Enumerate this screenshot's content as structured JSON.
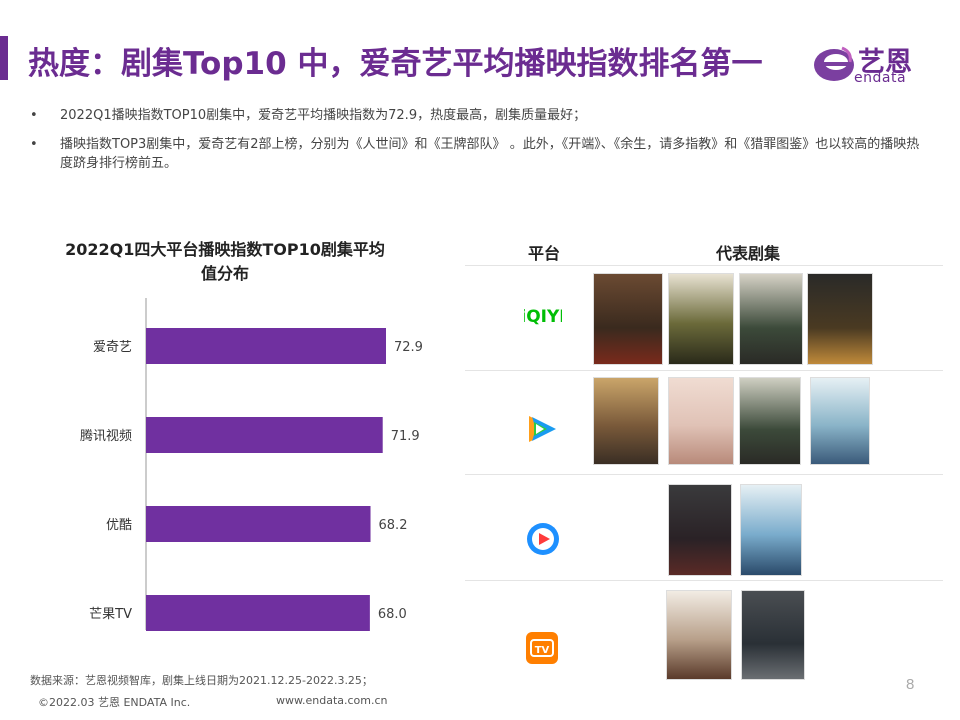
{
  "header": {
    "title": "热度：剧集Top10 中，爱奇艺平均播映指数排名第一",
    "logo_text": "艺恩",
    "logo_sub": "endata"
  },
  "bullets": [
    "2022Q1播映指数TOP10剧集中，爱奇艺平均播映指数为72.9，热度最高，剧集质量最好；",
    "播映指数TOP3剧集中，爱奇艺有2部上榜，分别为《人世间》和《王牌部队》 。此外，《开端》、《余生，请多指教》和《猎罪图鉴》也以较高的播映热度跻身排行榜前五。"
  ],
  "chart_data": {
    "type": "bar",
    "orientation": "horizontal",
    "title": "2022Q1四大平台播映指数TOP10剧集平均值分布",
    "categories": [
      "爱奇艺",
      "腾讯视频",
      "优酷",
      "芒果TV"
    ],
    "values": [
      72.9,
      71.9,
      68.2,
      68.0
    ],
    "value_labels": [
      "72.9",
      "71.9",
      "68.2",
      "68.0"
    ],
    "bar_color": "#7030a0"
  },
  "table": {
    "col_platform": "平台",
    "col_shows": "代表剧集",
    "rows": [
      {
        "platform_icon": "iqiyi-logo-icon",
        "icon_text": "iQIYI",
        "color": "#00be06",
        "posters": 4
      },
      {
        "platform_icon": "tencent-video-logo-icon",
        "color": "#1a9bf0",
        "posters": 4
      },
      {
        "platform_icon": "youku-logo-icon",
        "color": "#1e90ff",
        "posters": 2
      },
      {
        "platform_icon": "mango-tv-logo-icon",
        "icon_text": "TV",
        "color": "#ff7f00",
        "posters": 2
      }
    ]
  },
  "footer": {
    "source": "数据来源：艺恩视频智库，剧集上线日期为2021.12.25-2022.3.25；",
    "copyright": "©2022.03 艺恩 ENDATA Inc.",
    "website": "www.endata.com.cn",
    "page": "8"
  }
}
